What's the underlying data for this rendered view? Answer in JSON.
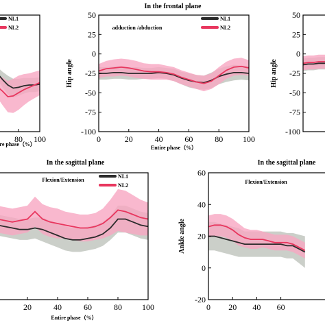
{
  "colors": {
    "nl1": "#2b2b2b",
    "nl1_band": "#c8ccc6",
    "nl2": "#e8365e",
    "nl2_band": "#f7a6c2"
  },
  "chart_data": [
    {
      "id": "top-left",
      "type": "line",
      "title": "",
      "panel_label": "",
      "xlabel": "ntire phase（%）",
      "ylabel": "",
      "xlim": [
        60,
        100
      ],
      "ylim": [
        -100,
        50
      ],
      "x_ticks": [
        "80",
        "100"
      ],
      "y_ticks": [],
      "legend": {
        "placement": "top-right",
        "entries": [
          "NL1",
          "NL2"
        ]
      },
      "series": [
        {
          "name": "NL1",
          "x": [
            60,
            65,
            70,
            75,
            80,
            85,
            90,
            95,
            100
          ],
          "y": [
            -25,
            -33,
            -40,
            -44,
            -43,
            -41,
            -40,
            -40,
            -39
          ],
          "band": [
            8,
            10,
            12,
            12,
            11,
            10,
            9,
            9,
            9
          ]
        },
        {
          "name": "NL2",
          "x": [
            60,
            65,
            70,
            75,
            80,
            85,
            90,
            95,
            100
          ],
          "y": [
            -42,
            -48,
            -55,
            -54,
            -50,
            -46,
            -43,
            -40,
            -37
          ],
          "band": [
            14,
            18,
            20,
            22,
            22,
            20,
            18,
            17,
            16
          ]
        }
      ]
    },
    {
      "id": "top-middle",
      "type": "line",
      "title": "In the frontal plane",
      "panel_label": "adduction /abduction",
      "xlabel": "Entire phase（%）",
      "ylabel": "Hip angle",
      "xlim": [
        0,
        100
      ],
      "ylim": [
        -100,
        50
      ],
      "x_ticks": [
        "0",
        "20",
        "40",
        "60",
        "80",
        "100"
      ],
      "y_ticks": [
        "50",
        "25",
        "0",
        "-25",
        "-50",
        "-75",
        "-100"
      ],
      "legend": {
        "placement": "top-right",
        "entries": [
          "NL1",
          "NL2"
        ]
      },
      "series": [
        {
          "name": "NL1",
          "x": [
            0,
            5,
            10,
            15,
            20,
            25,
            30,
            35,
            40,
            45,
            50,
            55,
            60,
            65,
            70,
            75,
            80,
            85,
            90,
            95,
            100
          ],
          "y": [
            -25,
            -25,
            -24,
            -24,
            -25,
            -25,
            -25,
            -25,
            -24,
            -25,
            -27,
            -31,
            -34,
            -36,
            -37,
            -34,
            -29,
            -26,
            -24,
            -24,
            -25
          ],
          "band": [
            8,
            8,
            8,
            8,
            8,
            8,
            7,
            7,
            7,
            7,
            8,
            8,
            9,
            9,
            9,
            10,
            10,
            10,
            10,
            9,
            9
          ]
        },
        {
          "name": "NL2",
          "x": [
            0,
            5,
            10,
            15,
            20,
            25,
            30,
            35,
            40,
            45,
            50,
            55,
            60,
            65,
            70,
            75,
            80,
            85,
            90,
            95,
            100
          ],
          "y": [
            -22,
            -19,
            -18,
            -17,
            -18,
            -20,
            -22,
            -23,
            -23,
            -24,
            -26,
            -30,
            -33,
            -36,
            -38,
            -35,
            -28,
            -21,
            -17,
            -16,
            -18
          ],
          "band": [
            9,
            10,
            11,
            11,
            11,
            11,
            10,
            10,
            10,
            9,
            9,
            9,
            9,
            9,
            10,
            10,
            11,
            11,
            11,
            11,
            10
          ]
        }
      ]
    },
    {
      "id": "top-right",
      "type": "line",
      "title": "",
      "panel_label": "",
      "xlabel": "",
      "ylabel": "Hip angle",
      "xlim": [
        0,
        10
      ],
      "ylim": [
        -100,
        50
      ],
      "x_ticks": [],
      "y_ticks": [
        "50",
        "25",
        "0",
        "-25",
        "-50",
        "-75",
        "-100"
      ],
      "legend": {
        "placement": "top-right",
        "entries": []
      },
      "series": [
        {
          "name": "",
          "x": [
            0,
            2,
            4,
            6,
            8,
            10
          ],
          "y": [
            -14,
            -13,
            -13,
            -12,
            -12,
            -12
          ],
          "band": [
            8,
            8,
            8,
            8,
            8,
            8
          ]
        },
        {
          "name": "",
          "x": [
            0,
            2,
            4,
            6,
            8,
            10
          ],
          "y": [
            -12,
            -11,
            -11,
            -10,
            -10,
            -10
          ],
          "band": [
            9,
            9,
            9,
            9,
            9,
            9
          ]
        }
      ]
    },
    {
      "id": "bottom-left",
      "type": "line",
      "title": "In the sagittal plane",
      "panel_label": "Flexion/Extension",
      "xlabel": "Entire phase（%）",
      "ylabel": "",
      "xlim": [
        0,
        100
      ],
      "ylim": [
        -40,
        45
      ],
      "x_ticks": [
        "20",
        "40",
        "60",
        "80",
        "100"
      ],
      "y_ticks": [],
      "legend": {
        "placement": "top-right",
        "entries": [
          "NL1",
          "NL2"
        ]
      },
      "series": [
        {
          "name": "NL1",
          "x": [
            0,
            5,
            10,
            15,
            20,
            25,
            30,
            35,
            40,
            45,
            50,
            55,
            60,
            65,
            70,
            75,
            80,
            85,
            90,
            95,
            100
          ],
          "y": [
            10,
            9,
            8,
            7,
            7,
            8,
            7,
            5,
            3,
            1,
            0,
            0,
            1,
            2,
            4,
            8,
            14,
            14,
            12,
            10,
            9
          ],
          "band": [
            7,
            7,
            7,
            7,
            7,
            7,
            8,
            8,
            8,
            8,
            8,
            8,
            8,
            8,
            8,
            8,
            9,
            9,
            9,
            9,
            9
          ]
        },
        {
          "name": "NL2",
          "x": [
            0,
            5,
            10,
            15,
            20,
            25,
            30,
            35,
            40,
            45,
            50,
            55,
            60,
            65,
            70,
            75,
            80,
            85,
            90,
            95,
            100
          ],
          "y": [
            14,
            13,
            12,
            13,
            14,
            19,
            14,
            12,
            11,
            10,
            9,
            8,
            8,
            9,
            11,
            15,
            20,
            19,
            17,
            15,
            14
          ],
          "band": [
            9,
            9,
            9,
            9,
            9,
            10,
            10,
            10,
            10,
            9,
            9,
            9,
            9,
            9,
            10,
            12,
            14,
            14,
            13,
            12,
            11
          ]
        }
      ]
    },
    {
      "id": "bottom-right",
      "type": "line",
      "title": "In the sagittal plane",
      "panel_label": "Flexion/Extension",
      "xlabel": "",
      "ylabel": "Ankle angle",
      "xlim": [
        0,
        100
      ],
      "ylim": [
        -20,
        60
      ],
      "x_ticks": [
        "0",
        "20",
        "40",
        "60"
      ],
      "y_ticks": [
        "60",
        "40",
        "20",
        "0",
        "-20"
      ],
      "legend": {
        "placement": "top-right",
        "entries": []
      },
      "series": [
        {
          "name": "NL1",
          "x": [
            0,
            5,
            10,
            15,
            20,
            25,
            30,
            35,
            40,
            45,
            50,
            55,
            60,
            65,
            70,
            75,
            80
          ],
          "y": [
            20,
            20,
            19,
            18,
            17,
            16,
            15,
            15,
            15,
            15,
            15,
            15,
            15,
            14,
            14,
            12,
            10
          ],
          "band": [
            9,
            9,
            9,
            9,
            9,
            9,
            8,
            8,
            8,
            8,
            8,
            8,
            8,
            8,
            8,
            9,
            10
          ]
        },
        {
          "name": "NL2",
          "x": [
            0,
            5,
            10,
            15,
            20,
            25,
            30,
            35,
            40,
            45,
            50,
            55,
            60,
            65,
            70,
            75,
            80
          ],
          "y": [
            26,
            27,
            27,
            26,
            24,
            21,
            19,
            18,
            18,
            18,
            17,
            16,
            16,
            16,
            15,
            13,
            11
          ],
          "band": [
            7,
            7,
            7,
            7,
            7,
            7,
            6,
            6,
            6,
            5,
            5,
            5,
            5,
            5,
            5,
            5,
            5
          ]
        }
      ]
    }
  ]
}
